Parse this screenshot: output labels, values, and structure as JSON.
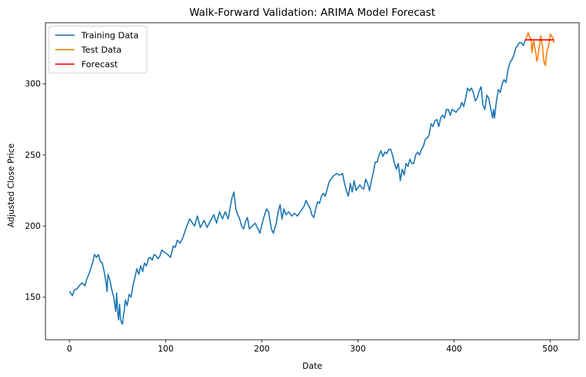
{
  "chart_data": {
    "type": "line",
    "title": "Walk-Forward Validation: ARIMA Model Forecast",
    "xlabel": "Date",
    "ylabel": "Adjusted Close Price",
    "xlim": [
      -25,
      530
    ],
    "ylim": [
      120,
      343
    ],
    "xticks": [
      0,
      100,
      200,
      300,
      400,
      500
    ],
    "yticks": [
      150,
      200,
      250,
      300
    ],
    "grid": false,
    "legend_position": "top-left",
    "series": [
      {
        "name": "Training Data",
        "color": "#1f77b4",
        "points": [
          [
            0,
            154
          ],
          [
            3,
            151
          ],
          [
            5,
            155
          ],
          [
            8,
            156
          ],
          [
            10,
            158
          ],
          [
            13,
            160
          ],
          [
            16,
            158
          ],
          [
            18,
            163
          ],
          [
            20,
            166
          ],
          [
            22,
            170
          ],
          [
            24,
            174
          ],
          [
            26,
            180
          ],
          [
            28,
            178
          ],
          [
            30,
            180
          ],
          [
            32,
            175
          ],
          [
            34,
            174
          ],
          [
            36,
            168
          ],
          [
            38,
            160
          ],
          [
            39,
            154
          ],
          [
            40,
            166
          ],
          [
            42,
            162
          ],
          [
            44,
            155
          ],
          [
            46,
            150
          ],
          [
            48,
            140
          ],
          [
            49,
            153
          ],
          [
            50,
            140
          ],
          [
            51,
            134
          ],
          [
            52,
            145
          ],
          [
            53,
            135
          ],
          [
            54,
            132
          ],
          [
            55,
            131
          ],
          [
            56,
            137
          ],
          [
            57,
            141
          ],
          [
            58,
            148
          ],
          [
            60,
            144
          ],
          [
            62,
            152
          ],
          [
            64,
            150
          ],
          [
            66,
            158
          ],
          [
            68,
            164
          ],
          [
            70,
            170
          ],
          [
            72,
            166
          ],
          [
            74,
            172
          ],
          [
            76,
            168
          ],
          [
            78,
            174
          ],
          [
            80,
            172
          ],
          [
            82,
            177
          ],
          [
            84,
            178
          ],
          [
            86,
            176
          ],
          [
            88,
            180
          ],
          [
            90,
            179
          ],
          [
            92,
            177
          ],
          [
            94,
            179
          ],
          [
            96,
            183
          ],
          [
            98,
            182
          ],
          [
            100,
            181
          ],
          [
            102,
            180
          ],
          [
            105,
            178
          ],
          [
            108,
            186
          ],
          [
            110,
            185
          ],
          [
            112,
            190
          ],
          [
            115,
            188
          ],
          [
            118,
            192
          ],
          [
            120,
            196
          ],
          [
            122,
            200
          ],
          [
            125,
            205
          ],
          [
            128,
            202
          ],
          [
            130,
            200
          ],
          [
            133,
            207
          ],
          [
            136,
            199
          ],
          [
            140,
            204
          ],
          [
            143,
            199
          ],
          [
            146,
            203
          ],
          [
            150,
            208
          ],
          [
            153,
            202
          ],
          [
            156,
            210
          ],
          [
            159,
            205
          ],
          [
            162,
            210
          ],
          [
            165,
            205
          ],
          [
            167,
            213
          ],
          [
            169,
            220
          ],
          [
            171,
            224
          ],
          [
            173,
            212
          ],
          [
            175,
            208
          ],
          [
            177,
            205
          ],
          [
            179,
            200
          ],
          [
            181,
            198
          ],
          [
            183,
            203
          ],
          [
            185,
            206
          ],
          [
            187,
            198
          ],
          [
            190,
            200
          ],
          [
            193,
            202
          ],
          [
            196,
            198
          ],
          [
            198,
            195
          ],
          [
            200,
            201
          ],
          [
            202,
            206
          ],
          [
            205,
            212
          ],
          [
            207,
            210
          ],
          [
            210,
            198
          ],
          [
            212,
            195
          ],
          [
            215,
            202
          ],
          [
            217,
            210
          ],
          [
            219,
            215
          ],
          [
            221,
            205
          ],
          [
            223,
            212
          ],
          [
            225,
            208
          ],
          [
            228,
            210
          ],
          [
            231,
            207
          ],
          [
            234,
            209
          ],
          [
            237,
            207
          ],
          [
            240,
            210
          ],
          [
            242,
            212
          ],
          [
            244,
            214
          ],
          [
            246,
            218
          ],
          [
            248,
            215
          ],
          [
            250,
            213
          ],
          [
            252,
            208
          ],
          [
            254,
            206
          ],
          [
            256,
            212
          ],
          [
            258,
            217
          ],
          [
            260,
            216
          ],
          [
            262,
            221
          ],
          [
            264,
            223
          ],
          [
            266,
            221
          ],
          [
            268,
            226
          ],
          [
            270,
            231
          ],
          [
            272,
            233
          ],
          [
            274,
            235
          ],
          [
            276,
            236
          ],
          [
            278,
            237
          ],
          [
            280,
            236
          ],
          [
            282,
            236
          ],
          [
            284,
            237
          ],
          [
            286,
            230
          ],
          [
            288,
            225
          ],
          [
            290,
            221
          ],
          [
            292,
            230
          ],
          [
            294,
            224
          ],
          [
            296,
            232
          ],
          [
            298,
            225
          ],
          [
            300,
            227
          ],
          [
            302,
            229
          ],
          [
            304,
            227
          ],
          [
            306,
            226
          ],
          [
            308,
            233
          ],
          [
            310,
            230
          ],
          [
            312,
            225
          ],
          [
            314,
            232
          ],
          [
            316,
            238
          ],
          [
            318,
            245
          ],
          [
            320,
            245
          ],
          [
            322,
            250
          ],
          [
            324,
            253
          ],
          [
            326,
            249
          ],
          [
            328,
            252
          ],
          [
            330,
            251
          ],
          [
            332,
            254
          ],
          [
            334,
            254
          ],
          [
            336,
            250
          ],
          [
            338,
            244
          ],
          [
            340,
            240
          ],
          [
            342,
            244
          ],
          [
            344,
            232
          ],
          [
            346,
            240
          ],
          [
            348,
            236
          ],
          [
            350,
            244
          ],
          [
            352,
            242
          ],
          [
            354,
            247
          ],
          [
            356,
            244
          ],
          [
            358,
            244
          ],
          [
            360,
            250
          ],
          [
            362,
            252
          ],
          [
            364,
            250
          ],
          [
            366,
            254
          ],
          [
            368,
            256
          ],
          [
            370,
            261
          ],
          [
            372,
            262
          ],
          [
            374,
            264
          ],
          [
            376,
            272
          ],
          [
            378,
            270
          ],
          [
            380,
            274
          ],
          [
            382,
            275
          ],
          [
            384,
            270
          ],
          [
            386,
            276
          ],
          [
            388,
            278
          ],
          [
            390,
            276
          ],
          [
            392,
            282
          ],
          [
            394,
            282
          ],
          [
            396,
            278
          ],
          [
            398,
            282
          ],
          [
            400,
            281
          ],
          [
            402,
            280
          ],
          [
            404,
            282
          ],
          [
            406,
            283
          ],
          [
            408,
            287
          ],
          [
            410,
            284
          ],
          [
            412,
            290
          ],
          [
            414,
            297
          ],
          [
            416,
            295
          ],
          [
            418,
            297
          ],
          [
            420,
            294
          ],
          [
            422,
            288
          ],
          [
            424,
            290
          ],
          [
            426,
            295
          ],
          [
            428,
            298
          ],
          [
            430,
            285
          ],
          [
            432,
            282
          ],
          [
            434,
            292
          ],
          [
            436,
            290
          ],
          [
            438,
            283
          ],
          [
            440,
            276
          ],
          [
            441,
            282
          ],
          [
            442,
            276
          ],
          [
            444,
            288
          ],
          [
            446,
            296
          ],
          [
            448,
            294
          ],
          [
            450,
            300
          ],
          [
            452,
            303
          ],
          [
            454,
            301
          ],
          [
            456,
            310
          ],
          [
            458,
            315
          ],
          [
            460,
            317
          ],
          [
            462,
            320
          ],
          [
            464,
            325
          ],
          [
            466,
            327
          ],
          [
            468,
            329
          ],
          [
            470,
            329
          ],
          [
            472,
            327
          ],
          [
            474,
            331
          ]
        ]
      },
      {
        "name": "Test Data",
        "color": "#ff7f0e",
        "points": [
          [
            474,
            331
          ],
          [
            475,
            332
          ],
          [
            476,
            334
          ],
          [
            477,
            336
          ],
          [
            478,
            334
          ],
          [
            479,
            331
          ],
          [
            480,
            332
          ],
          [
            481,
            322
          ],
          [
            482,
            328
          ],
          [
            483,
            330
          ],
          [
            484,
            325
          ],
          [
            485,
            322
          ],
          [
            486,
            316
          ],
          [
            487,
            318
          ],
          [
            488,
            324
          ],
          [
            489,
            327
          ],
          [
            490,
            334
          ],
          [
            491,
            330
          ],
          [
            492,
            326
          ],
          [
            493,
            318
          ],
          [
            494,
            314
          ],
          [
            495,
            313
          ],
          [
            496,
            320
          ],
          [
            497,
            324
          ],
          [
            498,
            326
          ],
          [
            499,
            330
          ],
          [
            500,
            335
          ],
          [
            501,
            334
          ],
          [
            502,
            333
          ],
          [
            503,
            332
          ],
          [
            504,
            329
          ]
        ]
      },
      {
        "name": "Forecast",
        "color": "#ff0000",
        "points": [
          [
            474,
            331
          ],
          [
            478,
            331
          ],
          [
            482,
            331
          ],
          [
            486,
            331
          ],
          [
            490,
            331
          ],
          [
            494,
            331
          ],
          [
            498,
            331
          ],
          [
            502,
            331
          ],
          [
            504,
            331
          ]
        ]
      }
    ]
  }
}
